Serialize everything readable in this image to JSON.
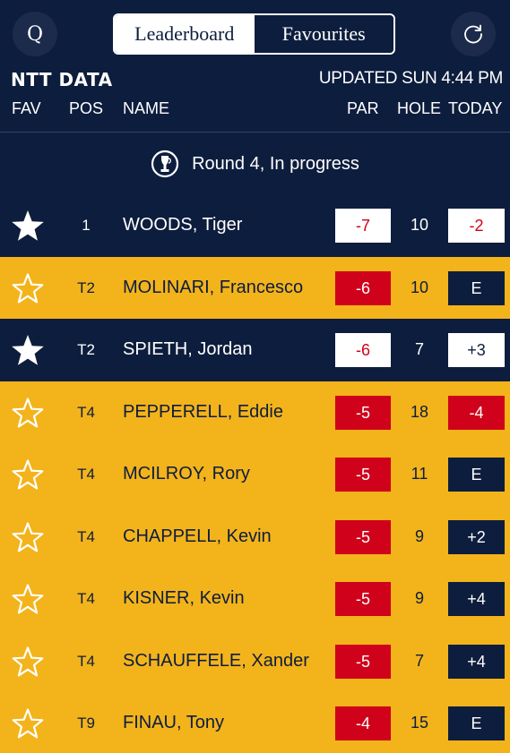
{
  "header": {
    "search_icon_glyph": "Q",
    "tabs": [
      {
        "label": "Leaderboard",
        "active": true
      },
      {
        "label": "Favourites",
        "active": false
      }
    ],
    "brand": "NTT DATA",
    "updated": "UPDATED SUN 4:44 PM"
  },
  "columns": {
    "fav": "FAV",
    "pos": "POS",
    "name": "NAME",
    "par": "PAR",
    "hole": "HOLE",
    "today": "TODAY"
  },
  "round_status": "Round 4, In progress",
  "colors": {
    "navy": "#0d1d3d",
    "gold": "#f3b31b",
    "red": "#d0021b",
    "white": "#ffffff"
  },
  "rows": [
    {
      "favourite": true,
      "pos": "1",
      "name": "WOODS, Tiger",
      "par": "-7",
      "hole": "10",
      "today": "-2"
    },
    {
      "favourite": false,
      "pos": "T2",
      "name": "MOLINARI, Francesco",
      "par": "-6",
      "hole": "10",
      "today": "E"
    },
    {
      "favourite": true,
      "pos": "T2",
      "name": "SPIETH, Jordan",
      "par": "-6",
      "hole": "7",
      "today": "+3"
    },
    {
      "favourite": false,
      "pos": "T4",
      "name": "PEPPERELL, Eddie",
      "par": "-5",
      "hole": "18",
      "today": "-4"
    },
    {
      "favourite": false,
      "pos": "T4",
      "name": "MCILROY, Rory",
      "par": "-5",
      "hole": "11",
      "today": "E"
    },
    {
      "favourite": false,
      "pos": "T4",
      "name": "CHAPPELL, Kevin",
      "par": "-5",
      "hole": "9",
      "today": "+2"
    },
    {
      "favourite": false,
      "pos": "T4",
      "name": "KISNER, Kevin",
      "par": "-5",
      "hole": "9",
      "today": "+4"
    },
    {
      "favourite": false,
      "pos": "T4",
      "name": "SCHAUFFELE, Xander",
      "par": "-5",
      "hole": "7",
      "today": "+4"
    },
    {
      "favourite": false,
      "pos": "T9",
      "name": "FINAU, Tony",
      "par": "-4",
      "hole": "15",
      "today": "E"
    }
  ]
}
